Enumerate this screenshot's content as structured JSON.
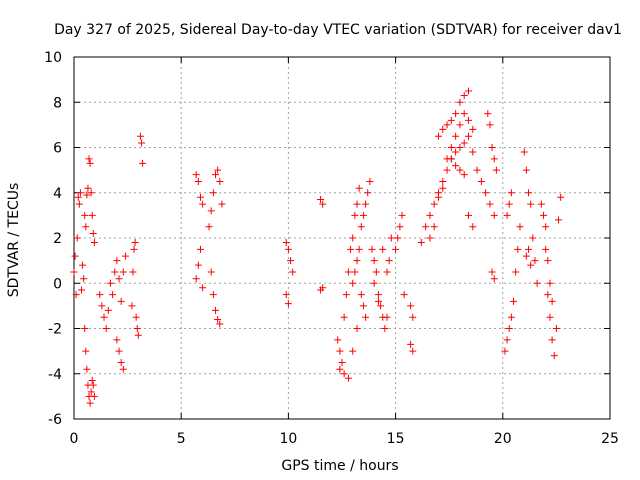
{
  "chart_data": {
    "type": "scatter",
    "title": "Day 327 of 2025, Sidereal Day-to-day VTEC variation (SDTVAR) for receiver dav1",
    "xlabel": "GPS time / hours",
    "ylabel": "SDTVAR / TECUs",
    "xlim": [
      0,
      25
    ],
    "ylim": [
      -6,
      10
    ],
    "xticks": [
      0,
      5,
      10,
      15,
      20,
      25
    ],
    "yticks": [
      -6,
      -4,
      -2,
      0,
      2,
      4,
      6,
      8,
      10
    ],
    "xtick_labels": [
      "0",
      "5",
      "10",
      "15",
      "20",
      "25"
    ],
    "ytick_labels": [
      "-6",
      "-4",
      "-2",
      "0",
      "2",
      "4",
      "6",
      "8",
      "10"
    ],
    "grid": true,
    "marker": "+",
    "color": "#ff0000",
    "series": [
      {
        "name": "dav1",
        "x": [
          0.0,
          0.05,
          0.1,
          0.15,
          0.2,
          0.25,
          0.3,
          0.35,
          0.4,
          0.45,
          0.5,
          0.55,
          0.6,
          0.65,
          0.7,
          0.75,
          0.8,
          0.85,
          0.9,
          0.95,
          0.5,
          0.55,
          0.6,
          0.65,
          0.7,
          0.75,
          0.8,
          0.85,
          0.9,
          0.95,
          1.2,
          1.3,
          1.4,
          1.5,
          1.6,
          1.7,
          1.8,
          1.9,
          2.0,
          2.1,
          2.2,
          2.3,
          2.4,
          2.0,
          2.1,
          2.2,
          2.3,
          2.7,
          2.75,
          2.8,
          2.85,
          2.9,
          2.95,
          3.0,
          3.1,
          3.15,
          3.2,
          5.7,
          5.8,
          5.9,
          6.0,
          5.7,
          5.8,
          5.9,
          6.0,
          6.3,
          6.4,
          6.5,
          6.6,
          6.7,
          6.8,
          6.9,
          6.4,
          6.5,
          6.6,
          6.7,
          6.8,
          9.9,
          10.0,
          10.1,
          10.2,
          9.9,
          10.0,
          11.5,
          11.6,
          11.5,
          11.6,
          12.3,
          12.4,
          12.5,
          12.6,
          12.7,
          12.8,
          12.9,
          13.0,
          13.1,
          13.2,
          13.3,
          12.4,
          12.6,
          12.8,
          13.0,
          13.2,
          13.0,
          13.1,
          13.2,
          13.3,
          13.4,
          13.5,
          13.6,
          13.7,
          13.8,
          13.4,
          13.5,
          13.6,
          13.9,
          14.0,
          14.1,
          14.2,
          14.3,
          14.4,
          14.5,
          14.6,
          14.7,
          14.8,
          14.0,
          14.2,
          14.4,
          14.6,
          15.0,
          15.1,
          15.2,
          15.3,
          15.4,
          15.7,
          15.8,
          15.7,
          15.8,
          16.2,
          16.4,
          16.6,
          16.8,
          17.0,
          17.2,
          17.4,
          17.6,
          17.8,
          18.0,
          18.2,
          18.4,
          18.6,
          18.8,
          19.0,
          19.2,
          19.4,
          19.6,
          16.6,
          16.8,
          17.0,
          17.2,
          17.4,
          17.6,
          17.8,
          18.0,
          18.2,
          18.4,
          18.6,
          17.0,
          17.2,
          17.4,
          17.6,
          17.8,
          18.0,
          18.2,
          18.4,
          17.6,
          17.8,
          18.0,
          18.2,
          18.4,
          18.6,
          19.3,
          19.4,
          19.5,
          19.6,
          19.7,
          19.5,
          19.6,
          20.1,
          20.2,
          20.3,
          20.4,
          20.5,
          20.6,
          20.7,
          20.8,
          20.2,
          20.3,
          20.4,
          21.0,
          21.1,
          21.2,
          21.3,
          21.4,
          21.5,
          21.6,
          21.1,
          21.2,
          21.3,
          21.8,
          21.9,
          22.0,
          22.1,
          22.2,
          22.3,
          22.4,
          22.5,
          22.6,
          22.7,
          22.0,
          22.1,
          22.2,
          22.3
        ],
        "y": [
          0.5,
          1.2,
          -0.5,
          2.0,
          3.8,
          3.5,
          4.0,
          -0.3,
          0.8,
          0.2,
          3.0,
          2.5,
          3.9,
          4.2,
          5.5,
          5.3,
          4.0,
          3.0,
          2.2,
          1.8,
          -2.0,
          -3.0,
          -3.8,
          -4.5,
          -5.0,
          -5.3,
          -4.8,
          -4.3,
          -4.5,
          -5.0,
          -0.5,
          -1.0,
          -1.5,
          -2.0,
          -1.2,
          0.0,
          -0.5,
          0.5,
          1.0,
          0.2,
          -0.8,
          0.5,
          1.2,
          -2.5,
          -3.0,
          -3.5,
          -3.8,
          -1.0,
          0.5,
          1.5,
          1.8,
          -1.5,
          -2.0,
          -2.3,
          6.5,
          6.2,
          5.3,
          4.8,
          4.5,
          3.8,
          3.5,
          0.2,
          0.8,
          1.5,
          -0.2,
          2.5,
          3.2,
          4.0,
          4.8,
          5.0,
          4.5,
          3.5,
          0.5,
          -0.5,
          -1.2,
          -1.6,
          -1.8,
          1.8,
          1.5,
          1.0,
          0.5,
          -0.5,
          -0.9,
          3.7,
          3.5,
          -0.3,
          -0.2,
          -2.5,
          -3.0,
          -3.5,
          -1.5,
          -0.5,
          0.5,
          1.5,
          2.0,
          3.0,
          3.5,
          4.2,
          -3.8,
          -4.0,
          -4.2,
          -3.0,
          -2.0,
          0.0,
          0.5,
          1.0,
          1.5,
          2.5,
          3.0,
          3.5,
          4.0,
          4.5,
          -0.5,
          -1.0,
          -1.5,
          1.5,
          1.0,
          0.5,
          -0.5,
          -1.0,
          -1.5,
          -2.0,
          -1.5,
          1.0,
          2.0,
          0.0,
          -0.8,
          1.5,
          0.5,
          1.5,
          2.0,
          2.5,
          3.0,
          -0.5,
          -1.0,
          -1.5,
          -2.7,
          -3.0,
          1.8,
          2.5,
          3.0,
          3.5,
          4.0,
          4.5,
          5.0,
          5.5,
          5.8,
          6.0,
          6.2,
          6.5,
          5.8,
          5.0,
          4.5,
          4.0,
          3.5,
          3.0,
          2.0,
          2.5,
          3.8,
          4.2,
          5.5,
          6.0,
          6.5,
          7.0,
          7.5,
          7.2,
          6.8,
          6.5,
          6.8,
          7.0,
          7.2,
          7.5,
          8.0,
          8.3,
          8.5,
          5.5,
          5.2,
          5.0,
          4.8,
          3.0,
          2.5,
          7.5,
          7.0,
          6.0,
          5.5,
          5.0,
          0.5,
          0.2,
          -3.0,
          -2.5,
          -2.0,
          -1.5,
          -0.8,
          0.5,
          1.5,
          2.5,
          3.0,
          3.5,
          4.0,
          5.8,
          5.0,
          4.0,
          3.5,
          2.0,
          1.0,
          0.0,
          1.2,
          1.5,
          0.8,
          3.5,
          3.0,
          2.5,
          -0.5,
          -1.5,
          -2.5,
          -3.2,
          -2.0,
          2.8,
          3.8,
          1.5,
          1.0,
          0.0,
          -0.8
        ]
      }
    ]
  }
}
